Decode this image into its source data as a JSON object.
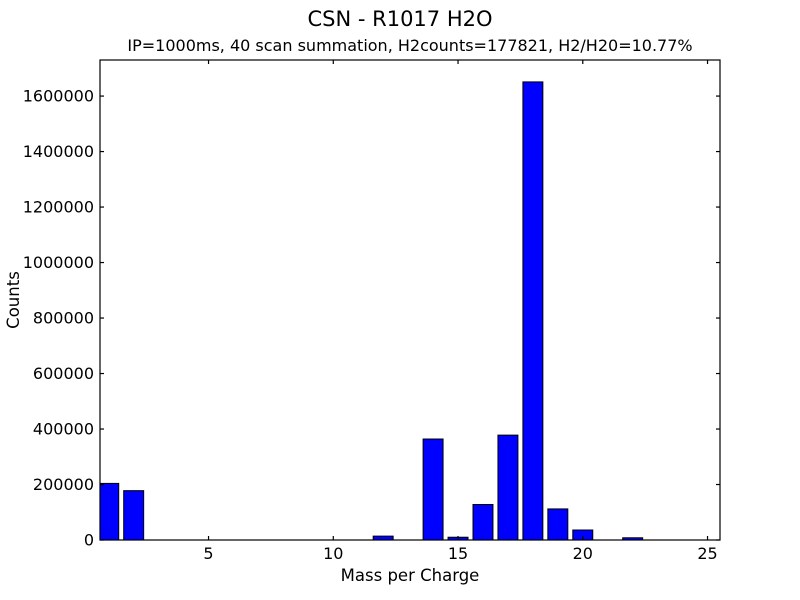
{
  "chart_data": {
    "type": "bar",
    "title": "CSN - R1017 H2O",
    "subtitle": "IP=1000ms, 40 scan summation, H2counts=177821, H2/H20=10.77%",
    "xlabel": "Mass per Charge",
    "ylabel": "Counts",
    "x": [
      1,
      2,
      12,
      14,
      15,
      16,
      17,
      18,
      19,
      20,
      22
    ],
    "values": [
      204000,
      177821,
      14000,
      364000,
      10000,
      128000,
      378000,
      1651077,
      112000,
      36000,
      8000
    ],
    "bar_width": 0.8,
    "x_ticks": [
      5,
      10,
      15,
      20,
      25
    ],
    "y_ticks": [
      0,
      200000,
      400000,
      600000,
      800000,
      1000000,
      1200000,
      1400000,
      1600000
    ],
    "xlim": [
      0.65,
      25.5
    ],
    "ylim": [
      0,
      1730000
    ],
    "grid": false,
    "legend": "none",
    "colors": {
      "bar_fill": "#0000ff",
      "bar_edge": "#000000",
      "axis": "#000000",
      "text": "#000000",
      "background": "#ffffff"
    }
  }
}
